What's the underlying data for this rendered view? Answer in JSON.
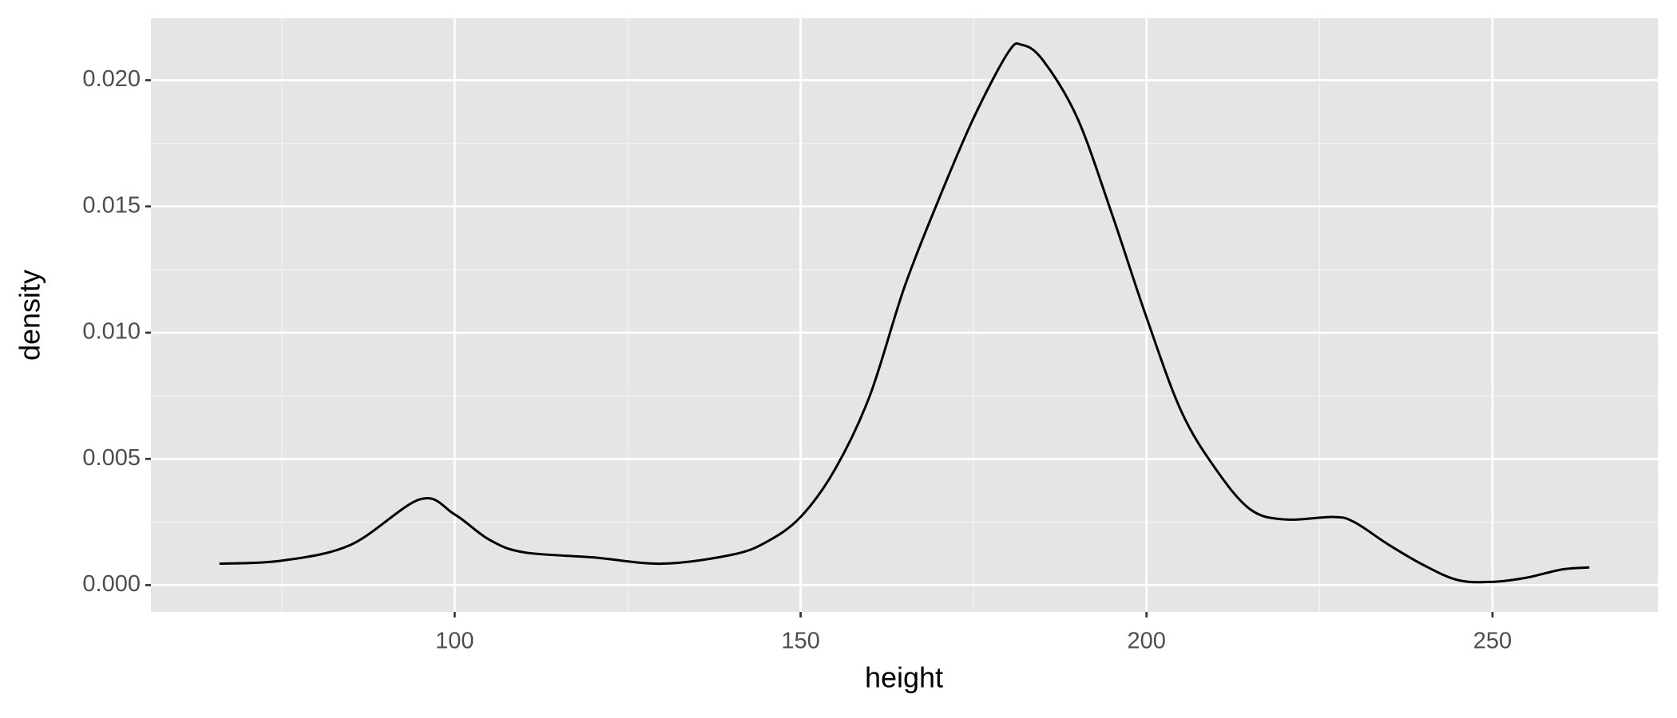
{
  "chart_data": {
    "type": "line",
    "x_label": "height",
    "y_label": "density",
    "x": [
      66,
      75,
      85,
      95,
      100,
      105,
      110,
      120,
      130,
      140,
      145,
      150,
      155,
      160,
      165,
      170,
      175,
      180,
      182,
      185,
      190,
      195,
      200,
      205,
      210,
      215,
      220,
      227,
      230,
      235,
      240,
      245,
      250,
      255,
      260,
      264
    ],
    "series": [
      {
        "name": "density",
        "color": "#000000",
        "values": [
          0.00085,
          0.00097,
          0.0016,
          0.0034,
          0.0028,
          0.0018,
          0.0013,
          0.0011,
          0.00085,
          0.0012,
          0.0017,
          0.0027,
          0.0046,
          0.0075,
          0.0118,
          0.0153,
          0.0185,
          0.0211,
          0.0214,
          0.0208,
          0.0185,
          0.0147,
          0.0106,
          0.0069,
          0.0046,
          0.003,
          0.0026,
          0.0027,
          0.0025,
          0.0016,
          0.0008,
          0.0002,
          0.00013,
          0.0003,
          0.00062,
          0.0007
        ]
      }
    ],
    "xlim": [
      56.1,
      273.9
    ],
    "ylim": [
      -0.00106,
      0.02245
    ],
    "xticks": [
      100,
      150,
      200,
      250
    ],
    "yticks": [
      {
        "value": 0,
        "label": "0.000"
      },
      {
        "value": 0.005,
        "label": "0.005"
      },
      {
        "value": 0.01,
        "label": "0.010"
      },
      {
        "value": 0.015,
        "label": "0.015"
      },
      {
        "value": 0.02,
        "label": "0.020"
      }
    ],
    "x_minor_ticks": [
      75,
      125,
      175,
      225
    ],
    "y_minor_ticks": [
      0.0025,
      0.0075,
      0.0125,
      0.0175
    ],
    "grid": true
  }
}
